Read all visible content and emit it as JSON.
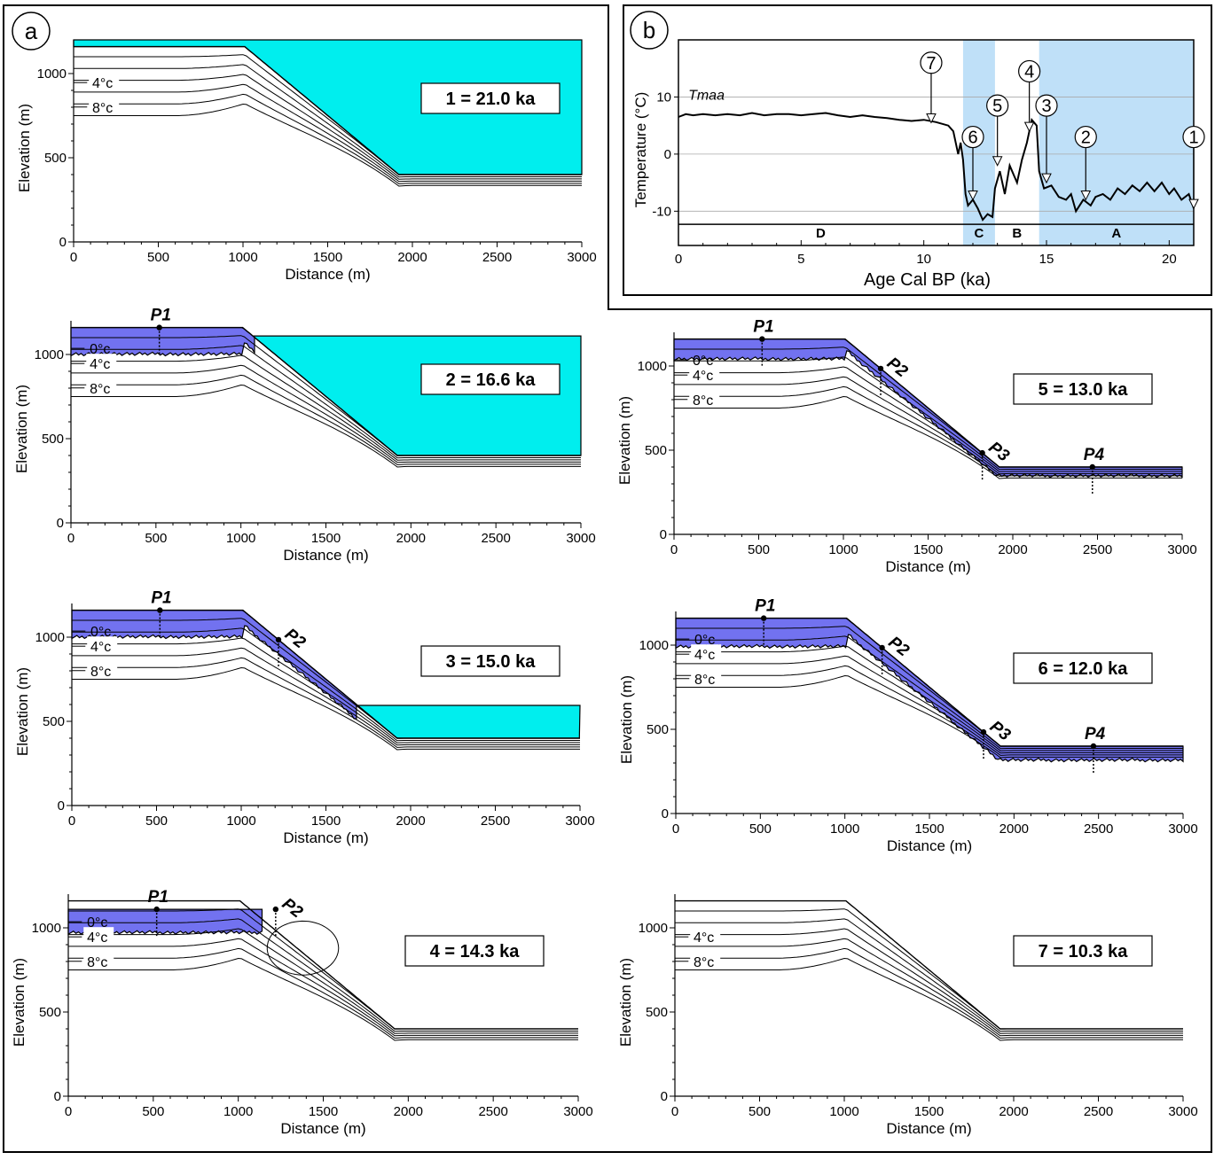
{
  "panel_labels": {
    "a": "a",
    "b": "b"
  },
  "colors": {
    "lake": "#00eeee",
    "frozen": "#7272f0",
    "cold_zone": "#bfe0f8",
    "line": "#000000"
  },
  "chart_data": [
    {
      "type": "line",
      "title": "1 = 21.0 ka",
      "xlabel": "Distance (m)",
      "ylabel": "Elevation (m)",
      "xlim": [
        0,
        3000
      ],
      "ylim": [
        0,
        1200
      ],
      "xticks": [
        0,
        500,
        1000,
        1500,
        2000,
        2500,
        3000
      ],
      "yticks": [
        0,
        500,
        1000
      ],
      "isotherm_labels": [
        "4°c",
        "8°c"
      ],
      "point_labels": [],
      "has_lake": true,
      "lake_level": 1200,
      "frozen": "none",
      "ring": false
    },
    {
      "type": "line",
      "title": "2 = 16.6 ka",
      "xlabel": "Distance (m)",
      "ylabel": "Elevation (m)",
      "xlim": [
        0,
        3000
      ],
      "ylim": [
        0,
        1200
      ],
      "xticks": [
        0,
        500,
        1000,
        1500,
        2000,
        2500,
        3000
      ],
      "yticks": [
        0,
        500,
        1000
      ],
      "isotherm_labels": [
        "0°c",
        "4°c",
        "8°c"
      ],
      "point_labels": [
        "P1"
      ],
      "has_lake": true,
      "lake_level": 1110,
      "frozen": "plateau",
      "ring": false
    },
    {
      "type": "line",
      "title": "3 = 15.0 ka",
      "xlabel": "Distance (m)",
      "ylabel": "Elevation (m)",
      "xlim": [
        0,
        3000
      ],
      "ylim": [
        0,
        1200
      ],
      "xticks": [
        0,
        500,
        1000,
        1500,
        2000,
        2500,
        3000
      ],
      "yticks": [
        0,
        500,
        1000
      ],
      "isotherm_labels": [
        "0°c",
        "4°c",
        "8°c"
      ],
      "point_labels": [
        "P1",
        "P2"
      ],
      "has_lake": true,
      "lake_level": 595,
      "frozen": "upper",
      "ring": false
    },
    {
      "type": "line",
      "title": "4 = 14.3 ka",
      "xlabel": "Distance (m)",
      "ylabel": "Elevation (m)",
      "xlim": [
        0,
        3000
      ],
      "ylim": [
        0,
        1200
      ],
      "xticks": [
        0,
        500,
        1000,
        1500,
        2000,
        2500,
        3000
      ],
      "yticks": [
        0,
        500,
        1000
      ],
      "isotherm_labels": [
        "0°c",
        "4°c",
        "8°c"
      ],
      "point_labels": [
        "P1",
        "P2"
      ],
      "has_lake": false,
      "frozen": "detached",
      "ring": true
    },
    {
      "type": "line",
      "title": "5 = 13.0 ka",
      "xlabel": "Distance (m)",
      "ylabel": "Elevation (m)",
      "xlim": [
        0,
        3000
      ],
      "ylim": [
        0,
        1200
      ],
      "xticks": [
        0,
        500,
        1000,
        1500,
        2000,
        2500,
        3000
      ],
      "yticks": [
        0,
        500,
        1000
      ],
      "isotherm_labels": [
        "0°c",
        "4°c",
        "8°c"
      ],
      "point_labels": [
        "P1",
        "P2",
        "P3",
        "P4"
      ],
      "has_lake": false,
      "frozen": "full",
      "ring": false
    },
    {
      "type": "line",
      "title": "6 = 12.0 ka",
      "xlabel": "Distance (m)",
      "ylabel": "Elevation (m)",
      "xlim": [
        0,
        3000
      ],
      "ylim": [
        0,
        1200
      ],
      "xticks": [
        0,
        500,
        1000,
        1500,
        2000,
        2500,
        3000
      ],
      "yticks": [
        0,
        500,
        1000
      ],
      "isotherm_labels": [
        "0°c",
        "4°c",
        "8°c"
      ],
      "point_labels": [
        "P1",
        "P2",
        "P3",
        "P4"
      ],
      "has_lake": false,
      "frozen": "full_thick",
      "ring": false
    },
    {
      "type": "line",
      "title": "7 = 10.3 ka",
      "xlabel": "Distance (m)",
      "ylabel": "Elevation (m)",
      "xlim": [
        0,
        3000
      ],
      "ylim": [
        0,
        1200
      ],
      "xticks": [
        0,
        500,
        1000,
        1500,
        2000,
        2500,
        3000
      ],
      "yticks": [
        0,
        500,
        1000
      ],
      "isotherm_labels": [
        "4°c",
        "8°c"
      ],
      "point_labels": [],
      "has_lake": false,
      "frozen": "none",
      "ring": false
    },
    {
      "type": "line",
      "title": "",
      "xlabel": "Age Cal BP (ka)",
      "ylabel": "Temperature (°C)",
      "xlim": [
        0,
        21
      ],
      "ylim": [
        -16,
        20
      ],
      "xticks": [
        0,
        5,
        10,
        15,
        20
      ],
      "yticks": [
        -10,
        0,
        10
      ],
      "grid_lines_y": [
        -10,
        0,
        10
      ],
      "series_label": "Tmaa",
      "zones": [
        {
          "label": "D",
          "from": 0,
          "to": 11.6
        },
        {
          "label": "C",
          "from": 11.6,
          "to": 12.9
        },
        {
          "label": "B",
          "from": 12.9,
          "to": 14.7
        },
        {
          "label": "A",
          "from": 14.7,
          "to": 21
        }
      ],
      "shaded_zones": [
        "C",
        "A"
      ],
      "markers": [
        {
          "label": "1",
          "age": 21.0,
          "temp": -9.5
        },
        {
          "label": "2",
          "age": 16.6,
          "temp": -8
        },
        {
          "label": "3",
          "age": 15.0,
          "temp": -5
        },
        {
          "label": "4",
          "age": 14.3,
          "temp": 4
        },
        {
          "label": "5",
          "age": 13.0,
          "temp": -2
        },
        {
          "label": "6",
          "age": 12.0,
          "temp": -8
        },
        {
          "label": "7",
          "age": 10.3,
          "temp": 5.5
        }
      ],
      "x": [
        0,
        0.3,
        0.6,
        1,
        1.5,
        2,
        2.5,
        3,
        3.5,
        4,
        4.5,
        5,
        5.5,
        6,
        6.5,
        7,
        7.5,
        8,
        8.5,
        9,
        9.5,
        10,
        10.5,
        11,
        11.2,
        11.4,
        11.5,
        11.6,
        11.7,
        11.8,
        12,
        12.2,
        12.4,
        12.6,
        12.8,
        12.9,
        13.1,
        13.3,
        13.5,
        13.8,
        14,
        14.2,
        14.4,
        14.6,
        14.7,
        14.9,
        15.2,
        15.5,
        15.8,
        16,
        16.2,
        16.5,
        16.8,
        17,
        17.3,
        17.6,
        17.9,
        18.2,
        18.5,
        18.8,
        19.1,
        19.4,
        19.7,
        20,
        20.2,
        20.5,
        20.8,
        21
      ],
      "y": [
        6.5,
        7,
        6.8,
        7,
        6.8,
        7,
        6.8,
        7.2,
        6.8,
        7,
        7,
        6.8,
        7,
        7.2,
        6.8,
        6.5,
        6.8,
        6.5,
        6.3,
        6,
        5.8,
        6,
        5.6,
        5,
        4,
        0,
        2,
        -1,
        -7,
        -9,
        -8,
        -9.5,
        -11.5,
        -10.5,
        -11,
        -6,
        -3,
        -7,
        -2,
        -5,
        -1,
        2,
        6,
        5,
        -3,
        -6,
        -5.5,
        -7.5,
        -8,
        -7,
        -10,
        -8,
        -9,
        -7.5,
        -7,
        -8,
        -6,
        -7,
        -5.5,
        -6.5,
        -5,
        -6.5,
        -5,
        -7,
        -6,
        -8,
        -7,
        -9.5
      ]
    }
  ]
}
